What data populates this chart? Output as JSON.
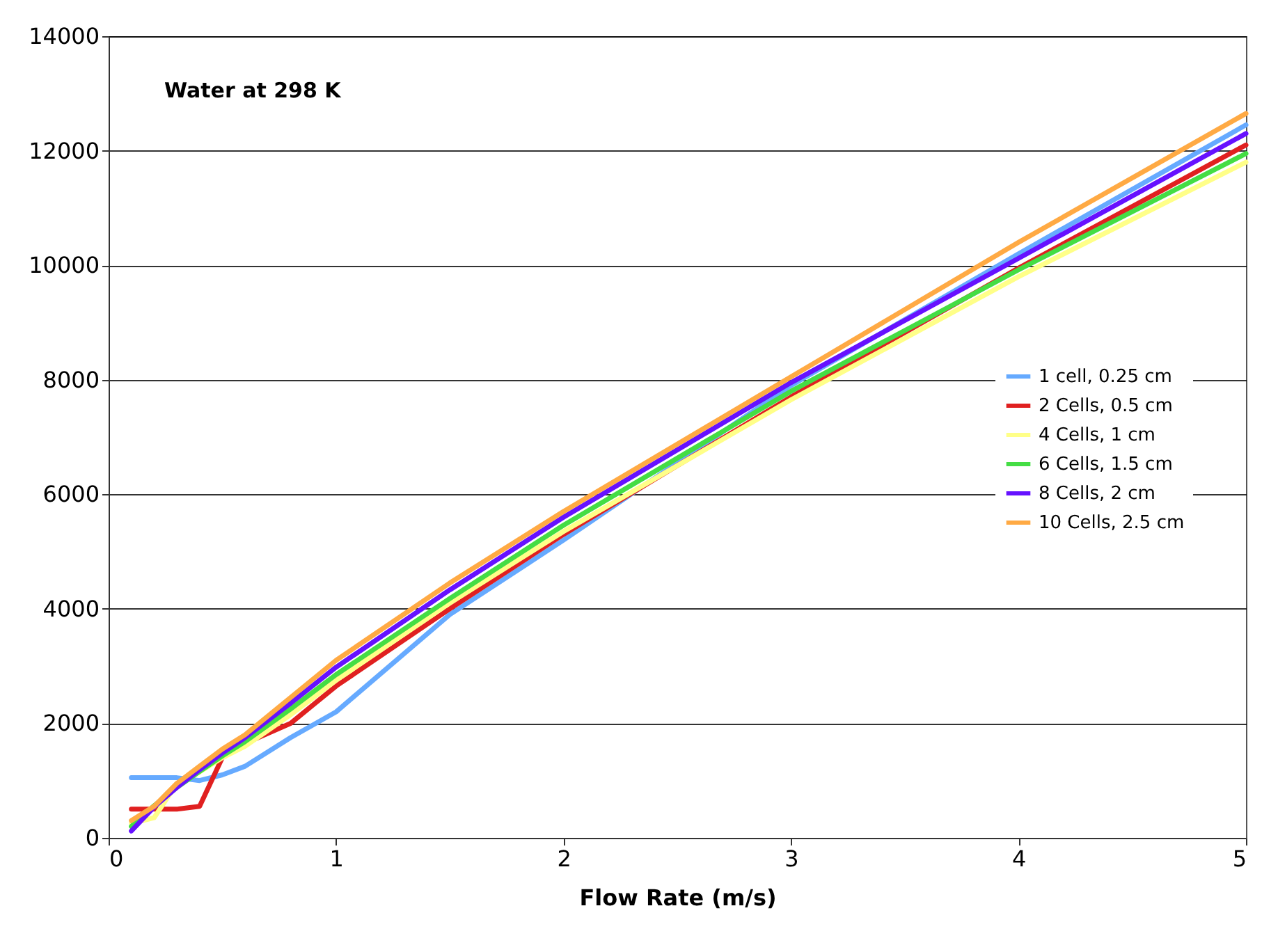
{
  "chart_data": {
    "type": "line",
    "annotations": [
      "Water at 298 K"
    ],
    "xlabel": "Flow Rate (m/s)",
    "x": [
      0.1,
      0.2,
      0.3,
      0.4,
      0.5,
      0.6,
      0.8,
      1,
      1.5,
      2,
      3,
      4,
      5
    ],
    "series": [
      {
        "name": "1 cell, 0.25 cm",
        "color": "#66aaff",
        "values": [
          1050,
          1050,
          1050,
          1000,
          1100,
          1250,
          1750,
          2200,
          3900,
          5200,
          7900,
          10200,
          12450
        ]
      },
      {
        "name": "2 Cells, 0.5 cm",
        "color": "#e02020",
        "values": [
          500,
          500,
          500,
          550,
          1400,
          1650,
          2000,
          2650,
          4000,
          5300,
          7700,
          9950,
          12100
        ]
      },
      {
        "name": "4 Cells, 1 cm",
        "color": "#ffff88",
        "values": [
          250,
          350,
          950,
          1150,
          1400,
          1600,
          2150,
          2750,
          4100,
          5350,
          7650,
          9800,
          11800
        ]
      },
      {
        "name": "6 Cells, 1.5 cm",
        "color": "#44dd44",
        "values": [
          200,
          560,
          880,
          1160,
          1430,
          1680,
          2250,
          2850,
          4180,
          5460,
          7800,
          9920,
          11950
        ]
      },
      {
        "name": "8 Cells, 2 cm",
        "color": "#6611ff",
        "values": [
          120,
          540,
          880,
          1190,
          1480,
          1750,
          2350,
          2980,
          4330,
          5600,
          7950,
          10120,
          12300
        ]
      },
      {
        "name": "10 Cells, 2.5 cm",
        "color": "#ffaa44",
        "values": [
          300,
          550,
          950,
          1250,
          1550,
          1800,
          2450,
          3100,
          4450,
          5700,
          8050,
          10400,
          12650
        ]
      }
    ],
    "xlim": [
      0,
      5
    ],
    "xticks": [
      0,
      1,
      2,
      3,
      4,
      5
    ],
    "ylim": [
      0,
      14000
    ],
    "yticks": [
      0,
      2000,
      4000,
      6000,
      8000,
      10000,
      12000,
      14000
    ],
    "grid": "y",
    "legend": "right",
    "line_style": "solid",
    "marker": "none"
  }
}
